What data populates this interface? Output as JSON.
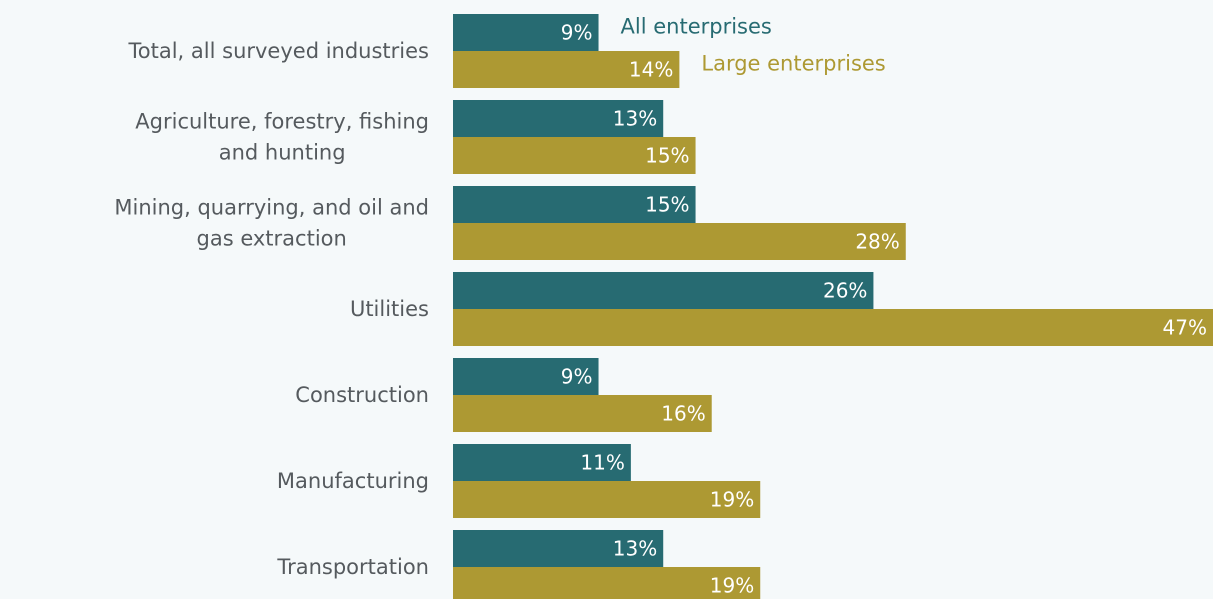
{
  "chart_data": {
    "type": "bar",
    "orientation": "horizontal",
    "title": "",
    "xlabel": "",
    "ylabel": "",
    "xlim": [
      0,
      47
    ],
    "grid": false,
    "legend_placement": "top, inline beside first category bars",
    "categories": [
      "Total, all surveyed industries",
      "Agriculture, forestry, fishing and hunting",
      "Mining, quarrying, and oil and gas extraction",
      "Utilities",
      "Construction",
      "Manufacturing",
      "Transportation"
    ],
    "series": [
      {
        "name": "All enterprises",
        "color": "#276b72",
        "values": [
          9,
          13,
          15,
          26,
          9,
          11,
          13
        ],
        "labels": [
          "9%",
          "13%",
          "15%",
          "26%",
          "9%",
          "11%",
          "13%"
        ]
      },
      {
        "name": "Large enterprises",
        "color": "#ad9933",
        "values": [
          14,
          15,
          28,
          47,
          16,
          19,
          19
        ],
        "labels": [
          "14%",
          "15%",
          "28%",
          "47%",
          "16%",
          "19%",
          "19%"
        ]
      }
    ]
  }
}
